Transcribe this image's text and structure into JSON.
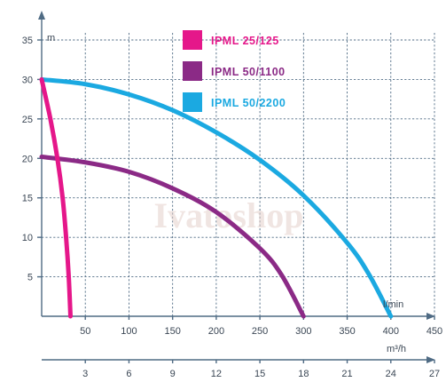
{
  "chart_data": {
    "type": "line",
    "watermark": "Ivatoshop",
    "y_unit": "m",
    "x_unit": "l/min",
    "x2_unit": "m³/h",
    "ylim": [
      0,
      35
    ],
    "xlim": [
      0,
      450
    ],
    "x2lim": [
      0,
      27
    ],
    "y_ticks": [
      5,
      10,
      15,
      20,
      25,
      30,
      35
    ],
    "x_ticks": [
      50,
      100,
      150,
      200,
      250,
      300,
      350,
      400,
      450
    ],
    "x2_ticks": [
      3,
      6,
      9,
      12,
      15,
      18,
      21,
      24,
      27
    ],
    "grid": true,
    "legend_position": "top-center",
    "series": [
      {
        "name": "IPML  25/125",
        "color": "#e5178a",
        "points": [
          [
            0,
            30
          ],
          [
            10,
            25
          ],
          [
            18,
            20
          ],
          [
            24,
            15
          ],
          [
            28,
            10
          ],
          [
            31,
            5
          ],
          [
            33,
            0
          ]
        ]
      },
      {
        "name": "IPML  50/1100",
        "color": "#8b2a86",
        "points": [
          [
            0,
            20.2
          ],
          [
            50,
            19.5
          ],
          [
            100,
            18.3
          ],
          [
            150,
            16.2
          ],
          [
            200,
            13.2
          ],
          [
            250,
            8.6
          ],
          [
            275,
            5.2
          ],
          [
            300,
            0
          ]
        ]
      },
      {
        "name": "IPML  50/2200",
        "color": "#1ba9e1",
        "points": [
          [
            0,
            30
          ],
          [
            50,
            29.4
          ],
          [
            100,
            28.1
          ],
          [
            150,
            26.1
          ],
          [
            200,
            23.3
          ],
          [
            250,
            19.8
          ],
          [
            300,
            15.3
          ],
          [
            350,
            9.3
          ],
          [
            375,
            5.3
          ],
          [
            400,
            0
          ]
        ]
      }
    ]
  }
}
